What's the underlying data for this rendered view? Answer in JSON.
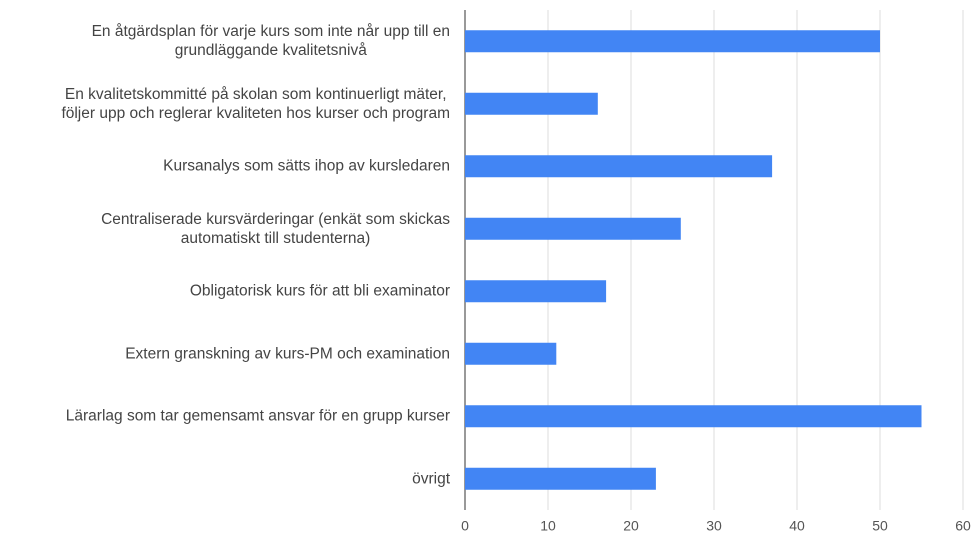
{
  "chart_data": {
    "type": "bar",
    "orientation": "horizontal",
    "categories": [
      "En åtgärdsplan för varje kurs som inte når upp till en\ngrundläggande kvalitetsnivå",
      "En kvalitetskommitté på skolan som kontinuerligt mäter,\nföljer upp och reglerar kvaliteten hos kurser och program",
      "Kursanalys som sätts ihop av kursledaren",
      "Centraliserade kursvärderingar (enkät som skickas\nautomatiskt till studenterna)",
      "Obligatorisk kurs för att bli examinator",
      "Extern granskning av kurs-PM och examination",
      "Lärarlag som tar gemensamt ansvar för en grupp kurser",
      "övrigt"
    ],
    "values": [
      50,
      16,
      37,
      26,
      17,
      11,
      55,
      23
    ],
    "color": "#4285f4",
    "xlim": [
      0,
      60
    ],
    "xticks": [
      0,
      10,
      20,
      30,
      40,
      50,
      60
    ],
    "grid": true
  }
}
